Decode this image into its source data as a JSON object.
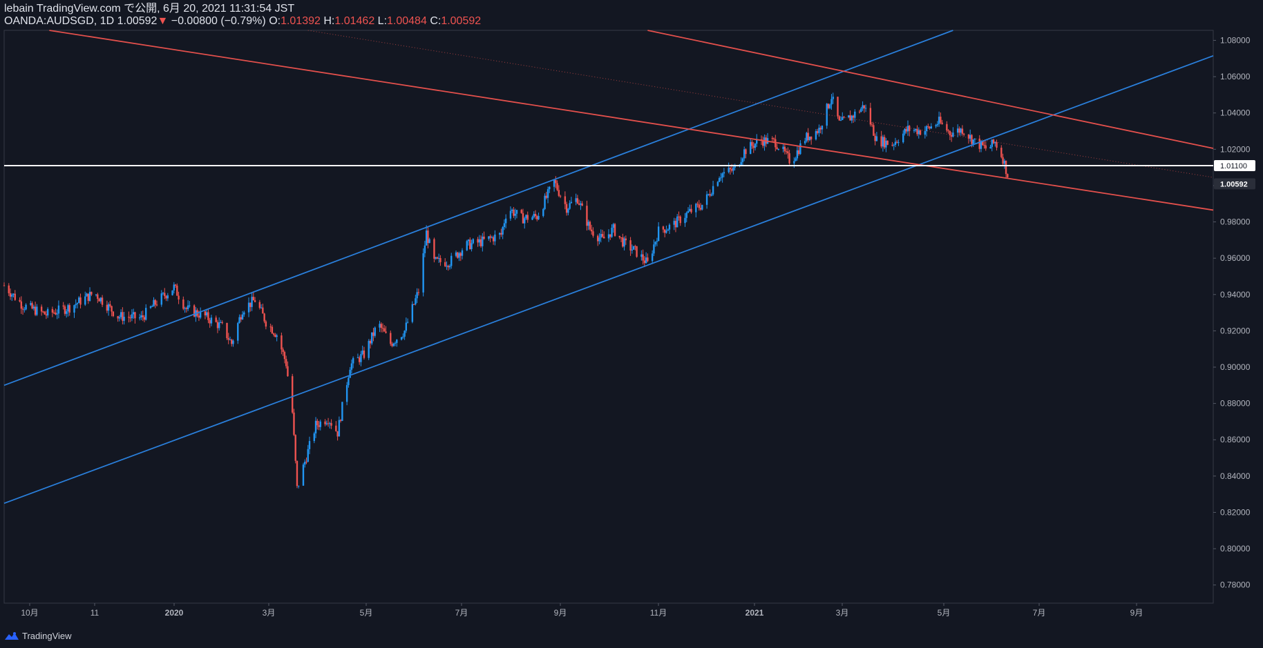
{
  "header": {
    "line1": "lebain TradingView.com で公開, 6月 20, 2021 11:31:54 JST",
    "symbol": "OANDA:AUDSGD, 1D",
    "last": "1.00592",
    "arrow": "▼",
    "change": "−0.00800 (−0.79%)",
    "o_label": "O:",
    "o": "1.01392",
    "h_label": "H:",
    "h": "1.01462",
    "l_label": "L:",
    "l": "1.00484",
    "c_label": "C:",
    "c": "1.00592"
  },
  "footer": {
    "brand": "TradingView"
  },
  "colors": {
    "background": "#131722",
    "up": "#2196f3",
    "down": "#ef5350",
    "line_blue": "#2a7fdb",
    "line_red": "#e4504c",
    "hline": "#ffffff",
    "grid_text": "#b2b5be"
  },
  "chart_data": {
    "type": "candlestick",
    "symbol": "OANDA:AUDSGD",
    "interval": "1D",
    "ylim": [
      0.77,
      1.0855
    ],
    "y_ticks": [
      "1.08000",
      "1.06000",
      "1.04000",
      "1.02000",
      "1.00000",
      "0.98000",
      "0.96000",
      "0.94000",
      "0.92000",
      "0.90000",
      "0.88000",
      "0.86000",
      "0.84000",
      "0.82000",
      "0.80000",
      "0.78000"
    ],
    "x_ticks": [
      "10月",
      "11",
      "2020",
      "3月",
      "5月",
      "7月",
      "9月",
      "11月",
      "2021",
      "3月",
      "5月",
      "7月",
      "9月"
    ],
    "price_labels": [
      {
        "text": "1.01100",
        "value": 1.011,
        "style": "hline"
      },
      {
        "text": "1.00592",
        "value": 1.00592,
        "style": "last"
      }
    ],
    "horizontal_line": 1.011,
    "trendlines": [
      {
        "color": "blue",
        "from": {
          "date": "2019-09-13",
          "price": 0.89
        },
        "to": {
          "date": "2021-05-14",
          "price": 1.0855
        }
      },
      {
        "color": "blue",
        "from": {
          "date": "2019-09-13",
          "price": 0.825
        },
        "to": {
          "date": "2021-10-28",
          "price": 1.0715
        }
      },
      {
        "color": "red",
        "from": {
          "date": "2019-10-12",
          "price": 1.0855
        },
        "to": {
          "date": "2021-10-28",
          "price": 0.9865
        }
      },
      {
        "color": "red",
        "from": {
          "date": "2020-10-30",
          "price": 1.0855
        },
        "to": {
          "date": "2021-10-28",
          "price": 1.0205
        }
      },
      {
        "color": "red",
        "style": "dotted",
        "from": {
          "date": "2020-03-26",
          "price": 1.0855
        },
        "to": {
          "date": "2021-10-28",
          "price": 1.0045
        }
      }
    ],
    "path": [
      [
        "2019-09-13",
        0.945
      ],
      [
        "2019-09-25",
        0.934
      ],
      [
        "2019-10-10",
        0.929
      ],
      [
        "2019-10-25",
        0.933
      ],
      [
        "2019-11-10",
        0.941
      ],
      [
        "2019-11-25",
        0.928
      ],
      [
        "2019-12-10",
        0.927
      ],
      [
        "2019-12-20",
        0.936
      ],
      [
        "2019-12-31",
        0.944
      ],
      [
        "2020-01-08",
        0.932
      ],
      [
        "2020-01-20",
        0.928
      ],
      [
        "2020-01-31",
        0.922
      ],
      [
        "2020-02-06",
        0.913
      ],
      [
        "2020-02-13",
        0.932
      ],
      [
        "2020-02-21",
        0.937
      ],
      [
        "2020-02-28",
        0.925
      ],
      [
        "2020-03-06",
        0.918
      ],
      [
        "2020-03-12",
        0.902
      ],
      [
        "2020-03-16",
        0.875
      ],
      [
        "2020-03-19",
        0.833
      ],
      [
        "2020-03-23",
        0.845
      ],
      [
        "2020-03-31",
        0.868
      ],
      [
        "2020-04-08",
        0.872
      ],
      [
        "2020-04-14",
        0.864
      ],
      [
        "2020-04-22",
        0.901
      ],
      [
        "2020-05-01",
        0.907
      ],
      [
        "2020-05-10",
        0.924
      ],
      [
        "2020-05-18",
        0.913
      ],
      [
        "2020-05-27",
        0.92
      ],
      [
        "2020-06-05",
        0.942
      ],
      [
        "2020-06-10",
        0.974
      ],
      [
        "2020-06-15",
        0.958
      ],
      [
        "2020-06-25",
        0.958
      ],
      [
        "2020-07-05",
        0.967
      ],
      [
        "2020-07-15",
        0.969
      ],
      [
        "2020-07-28",
        0.973
      ],
      [
        "2020-08-01",
        0.988
      ],
      [
        "2020-08-10",
        0.982
      ],
      [
        "2020-08-20",
        0.983
      ],
      [
        "2020-08-31",
        1.002
      ],
      [
        "2020-09-08",
        0.988
      ],
      [
        "2020-09-15",
        0.993
      ],
      [
        "2020-09-23",
        0.976
      ],
      [
        "2020-10-01",
        0.97
      ],
      [
        "2020-10-08",
        0.976
      ],
      [
        "2020-10-15",
        0.968
      ],
      [
        "2020-10-22",
        0.964
      ],
      [
        "2020-10-30",
        0.957
      ],
      [
        "2020-11-06",
        0.975
      ],
      [
        "2020-11-15",
        0.978
      ],
      [
        "2020-11-25",
        0.985
      ],
      [
        "2020-12-05",
        0.99
      ],
      [
        "2020-12-15",
        1.006
      ],
      [
        "2020-12-25",
        1.009
      ],
      [
        "2020-12-31",
        1.019
      ],
      [
        "2021-01-10",
        1.025
      ],
      [
        "2021-01-20",
        1.024
      ],
      [
        "2021-01-30",
        1.013
      ],
      [
        "2021-02-08",
        1.026
      ],
      [
        "2021-02-17",
        1.031
      ],
      [
        "2021-02-25",
        1.049
      ],
      [
        "2021-03-02",
        1.034
      ],
      [
        "2021-03-10",
        1.038
      ],
      [
        "2021-03-18",
        1.044
      ],
      [
        "2021-03-26",
        1.025
      ],
      [
        "2021-04-05",
        1.023
      ],
      [
        "2021-04-15",
        1.031
      ],
      [
        "2021-04-25",
        1.03
      ],
      [
        "2021-05-05",
        1.035
      ],
      [
        "2021-05-12",
        1.029
      ],
      [
        "2021-05-20",
        1.031
      ],
      [
        "2021-05-28",
        1.024
      ],
      [
        "2021-06-05",
        1.02
      ],
      [
        "2021-06-10",
        1.024
      ],
      [
        "2021-06-15",
        1.015
      ],
      [
        "2021-06-18",
        1.006
      ]
    ]
  }
}
